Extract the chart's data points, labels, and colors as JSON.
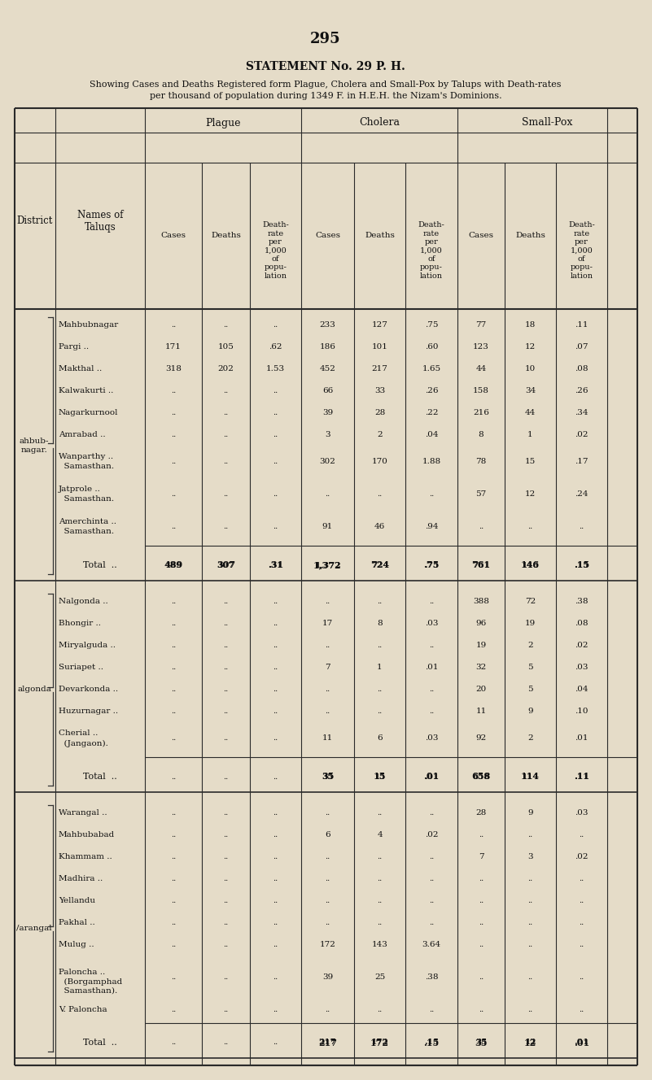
{
  "page_number": "295",
  "title": "STATEMENT No. 29 P. H.",
  "subtitle1": "Showing Cases and Deaths Registered form Plague, Cholera and Small-Pox by Talups with Death-rates",
  "subtitle2": "per thousand of population during 1349 F. in H.E.H. the Nizam's Dominions.",
  "bg_color": "#e5dcc8",
  "districts": [
    {
      "name": "ahbub-\nnagar.",
      "rows": [
        {
          "taluq": "Mahbubnagar",
          "taluq2": "",
          "p_cases": "..",
          "p_deaths": "..",
          "p_rate": "..",
          "c_cases": "233",
          "c_deaths": "127",
          "c_rate": ".75",
          "s_cases": "77",
          "s_deaths": "18",
          "s_rate": ".11"
        },
        {
          "taluq": "Pargi ..",
          "taluq2": "",
          "p_cases": "171",
          "p_deaths": "105",
          "p_rate": ".62",
          "c_cases": "186",
          "c_deaths": "101",
          "c_rate": ".60",
          "s_cases": "123",
          "s_deaths": "12",
          "s_rate": ".07"
        },
        {
          "taluq": "Makthal ..",
          "taluq2": "",
          "p_cases": "318",
          "p_deaths": "202",
          "p_rate": "1.53",
          "c_cases": "452",
          "c_deaths": "217",
          "c_rate": "1.65",
          "s_cases": "44",
          "s_deaths": "10",
          "s_rate": ".08"
        },
        {
          "taluq": "Kalwakurti ..",
          "taluq2": "",
          "p_cases": "..",
          "p_deaths": "..",
          "p_rate": "..",
          "c_cases": "66",
          "c_deaths": "33",
          "c_rate": ".26",
          "s_cases": "158",
          "s_deaths": "34",
          "s_rate": ".26"
        },
        {
          "taluq": "Nagarkurnool",
          "taluq2": "",
          "p_cases": "..",
          "p_deaths": "..",
          "p_rate": "..",
          "c_cases": "39",
          "c_deaths": "28",
          "c_rate": ".22",
          "s_cases": "216",
          "s_deaths": "44",
          "s_rate": ".34"
        },
        {
          "taluq": "Amrabad ..",
          "taluq2": "",
          "p_cases": "..",
          "p_deaths": "..",
          "p_rate": "..",
          "c_cases": "3",
          "c_deaths": "2",
          "c_rate": ".04",
          "s_cases": "8",
          "s_deaths": "1",
          "s_rate": ".02"
        },
        {
          "taluq": "Wanparthy ..",
          "taluq2": "  Samasthan.",
          "p_cases": "..",
          "p_deaths": "..",
          "p_rate": "..",
          "c_cases": "302",
          "c_deaths": "170",
          "c_rate": "1.88",
          "s_cases": "78",
          "s_deaths": "15",
          "s_rate": ".17"
        },
        {
          "taluq": "Jatprole ..",
          "taluq2": "  Samasthan.",
          "p_cases": "..",
          "p_deaths": "..",
          "p_rate": "..",
          "c_cases": "..",
          "c_deaths": "..",
          "c_rate": "..",
          "s_cases": "57",
          "s_deaths": "12",
          "s_rate": ".24"
        },
        {
          "taluq": "Amerchinta ..",
          "taluq2": "  Samasthan.",
          "p_cases": "..",
          "p_deaths": "..",
          "p_rate": "..",
          "c_cases": "91",
          "c_deaths": "46",
          "c_rate": ".94",
          "s_cases": "..",
          "s_deaths": "..",
          "s_rate": ".."
        }
      ],
      "total": {
        "p_cases": "489",
        "p_deaths": "307",
        "p_rate": ".31",
        "c_cases": "1,372",
        "c_deaths": "724",
        "c_rate": ".75",
        "s_cases": "761",
        "s_deaths": "146",
        "s_rate": ".15"
      }
    },
    {
      "name": "algonda",
      "rows": [
        {
          "taluq": "Nalgonda ..",
          "taluq2": "",
          "p_cases": "..",
          "p_deaths": "..",
          "p_rate": "..",
          "c_cases": "..",
          "c_deaths": "..",
          "c_rate": "..",
          "s_cases": "388",
          "s_deaths": "72",
          "s_rate": ".38"
        },
        {
          "taluq": "Bhongir ..",
          "taluq2": "",
          "p_cases": "..",
          "p_deaths": "..",
          "p_rate": "..",
          "c_cases": "17",
          "c_deaths": "8",
          "c_rate": ".03",
          "s_cases": "96",
          "s_deaths": "19",
          "s_rate": ".08"
        },
        {
          "taluq": "Miryalguda ..",
          "taluq2": "",
          "p_cases": "..",
          "p_deaths": "..",
          "p_rate": "..",
          "c_cases": "..",
          "c_deaths": "..",
          "c_rate": "..",
          "s_cases": "19",
          "s_deaths": "2",
          "s_rate": ".02"
        },
        {
          "taluq": "Suriapet ..",
          "taluq2": "",
          "p_cases": "..",
          "p_deaths": "..",
          "p_rate": "..",
          "c_cases": "7",
          "c_deaths": "1",
          "c_rate": ".01",
          "s_cases": "32",
          "s_deaths": "5",
          "s_rate": ".03"
        },
        {
          "taluq": "Devarkonda ..",
          "taluq2": "",
          "p_cases": "..",
          "p_deaths": "..",
          "p_rate": "..",
          "c_cases": "..",
          "c_deaths": "..",
          "c_rate": "..",
          "s_cases": "20",
          "s_deaths": "5",
          "s_rate": ".04"
        },
        {
          "taluq": "Huzurnagar ..",
          "taluq2": "",
          "p_cases": "..",
          "p_deaths": "..",
          "p_rate": "..",
          "c_cases": "..",
          "c_deaths": "..",
          "c_rate": "..",
          "s_cases": "11",
          "s_deaths": "9",
          "s_rate": ".10"
        },
        {
          "taluq": "Cherial ..",
          "taluq2": "  (Jangaon).",
          "p_cases": "..",
          "p_deaths": "..",
          "p_rate": "..",
          "c_cases": "11",
          "c_deaths": "6",
          "c_rate": ".03",
          "s_cases": "92",
          "s_deaths": "2",
          "s_rate": ".01"
        }
      ],
      "total": {
        "p_cases": "..",
        "p_deaths": "..",
        "p_rate": "..",
        "c_cases": "35",
        "c_deaths": "15",
        "c_rate": ".01",
        "s_cases": "658",
        "s_deaths": "114",
        "s_rate": ".11"
      }
    },
    {
      "name": "/arangal",
      "rows": [
        {
          "taluq": "Warangal ..",
          "taluq2": "",
          "p_cases": "..",
          "p_deaths": "..",
          "p_rate": "..",
          "c_cases": "..",
          "c_deaths": "..",
          "c_rate": "..",
          "s_cases": "28",
          "s_deaths": "9",
          "s_rate": ".03"
        },
        {
          "taluq": "Mahbubabad",
          "taluq2": "",
          "p_cases": "..",
          "p_deaths": "..",
          "p_rate": "..",
          "c_cases": "6",
          "c_deaths": "4",
          "c_rate": ".02",
          "s_cases": "..",
          "s_deaths": "..",
          "s_rate": ".."
        },
        {
          "taluq": "Khammam ..",
          "taluq2": "",
          "p_cases": "..",
          "p_deaths": "..",
          "p_rate": "..",
          "c_cases": "..",
          "c_deaths": "..",
          "c_rate": "..",
          "s_cases": "7",
          "s_deaths": "3",
          "s_rate": ".02"
        },
        {
          "taluq": "Madhira ..",
          "taluq2": "",
          "p_cases": "..",
          "p_deaths": "..",
          "p_rate": "..",
          "c_cases": "..",
          "c_deaths": "..",
          "c_rate": "..",
          "s_cases": "..",
          "s_deaths": "..",
          "s_rate": ".."
        },
        {
          "taluq": "Yellandu",
          "taluq2": "",
          "p_cases": "..",
          "p_deaths": "..",
          "p_rate": "..",
          "c_cases": "..",
          "c_deaths": "..",
          "c_rate": "..",
          "s_cases": "..",
          "s_deaths": "..",
          "s_rate": ".."
        },
        {
          "taluq": "Pakhal ..",
          "taluq2": "",
          "p_cases": "..",
          "p_deaths": "..",
          "p_rate": "..",
          "c_cases": "..",
          "c_deaths": "..",
          "c_rate": "..",
          "s_cases": "..",
          "s_deaths": "..",
          "s_rate": ".."
        },
        {
          "taluq": "Mulug ..",
          "taluq2": "",
          "p_cases": "..",
          "p_deaths": "..",
          "p_rate": "..",
          "c_cases": "172",
          "c_deaths": "143",
          "c_rate": "3.64",
          "s_cases": "..",
          "s_deaths": "..",
          "s_rate": ".."
        },
        {
          "taluq": "Paloncha ..",
          "taluq2": "  (Borgamphad",
          "taluq3": "  Samasthan).",
          "p_cases": "..",
          "p_deaths": "..",
          "p_rate": "..",
          "c_cases": "39",
          "c_deaths": "25",
          "c_rate": ".38",
          "s_cases": "..",
          "s_deaths": "..",
          "s_rate": ".."
        },
        {
          "taluq": "V. Paloncha",
          "taluq2": "",
          "p_cases": "..",
          "p_deaths": "..",
          "p_rate": "..",
          "c_cases": "..",
          "c_deaths": "..",
          "c_rate": "..",
          "s_cases": "..",
          "s_deaths": "..",
          "s_rate": ".."
        }
      ],
      "total": {
        "p_cases": "..",
        "p_deaths": "..",
        "p_rate": "..",
        "c_cases": "217",
        "c_deaths": "172",
        "c_rate": ".15",
        "s_cases": "35",
        "s_deaths": "12",
        "s_rate": ".01"
      }
    }
  ]
}
